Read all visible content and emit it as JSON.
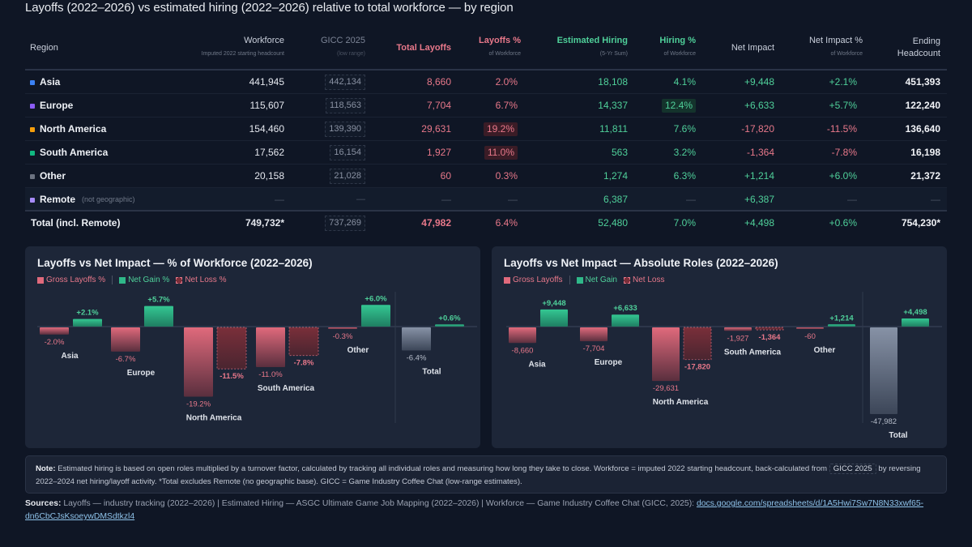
{
  "title": "Layoffs (2022–2026) vs estimated hiring (2022–2026) relative to total workforce — by region",
  "table": {
    "headers": {
      "region": "Region",
      "workforce": "Workforce",
      "workforce_sub": "Imputed 2022 starting headcount",
      "gicc": "GICC 2025",
      "gicc_sub": "(low range)",
      "layoffs": "Total Layoffs",
      "layoffs_pct": "Layoffs %",
      "layoffs_pct_sub": "of Workforce",
      "hiring": "Estimated Hiring",
      "hiring_sub": "(5-Yr Sum)",
      "hiring_pct": "Hiring %",
      "hiring_pct_sub": "of Workforce",
      "net": "Net Impact",
      "net_pct": "Net Impact %",
      "net_pct_sub": "of Workforce",
      "ending": "Ending Headcount"
    },
    "rows": [
      {
        "region": "Asia",
        "color": "#3b82f6",
        "workforce": "441,945",
        "gicc": "442,134",
        "layoffs": "8,660",
        "layoffs_pct": "2.0%",
        "hiring": "18,108",
        "hiring_pct": "4.1%",
        "net": "+9,448",
        "net_pct": "+2.1%",
        "ending": "451,393"
      },
      {
        "region": "Europe",
        "color": "#8b5cf6",
        "workforce": "115,607",
        "gicc": "118,563",
        "layoffs": "7,704",
        "layoffs_pct": "6.7%",
        "hiring": "14,337",
        "hiring_pct": "12.4%",
        "net": "+6,633",
        "net_pct": "+5.7%",
        "ending": "122,240"
      },
      {
        "region": "North America",
        "color": "#f59e0b",
        "workforce": "154,460",
        "gicc": "139,390",
        "layoffs": "29,631",
        "layoffs_pct": "19.2%",
        "hiring": "11,811",
        "hiring_pct": "7.6%",
        "net": "-17,820",
        "net_pct": "-11.5%",
        "ending": "136,640"
      },
      {
        "region": "South America",
        "color": "#10b981",
        "workforce": "17,562",
        "gicc": "16,154",
        "layoffs": "1,927",
        "layoffs_pct": "11.0%",
        "hiring": "563",
        "hiring_pct": "3.2%",
        "net": "-1,364",
        "net_pct": "-7.8%",
        "ending": "16,198"
      },
      {
        "region": "Other",
        "color": "#6b7280",
        "workforce": "20,158",
        "gicc": "21,028",
        "layoffs": "60",
        "layoffs_pct": "0.3%",
        "hiring": "1,274",
        "hiring_pct": "6.3%",
        "net": "+1,214",
        "net_pct": "+6.0%",
        "ending": "21,372"
      }
    ],
    "remote": {
      "region": "Remote",
      "note": "(not geographic)",
      "color": "#a78bfa",
      "workforce": "—",
      "gicc": "—",
      "layoffs": "—",
      "layoffs_pct": "—",
      "hiring": "6,387",
      "hiring_pct": "—",
      "net": "+6,387",
      "net_pct": "—",
      "ending": "—"
    },
    "total": {
      "region": "Total (incl. Remote)",
      "workforce": "749,732*",
      "gicc": "737,269",
      "layoffs": "47,982",
      "layoffs_pct": "6.4%",
      "hiring": "52,480",
      "hiring_pct": "7.0%",
      "net": "+4,498",
      "net_pct": "+0.6%",
      "ending": "754,230*"
    }
  },
  "colors": {
    "layoff": "#e06a7c",
    "gain": "#2fb889",
    "loss": "#7a2f3a",
    "total": "#8792a6",
    "text_red": "#e8788a",
    "text_green": "#4fd09a"
  },
  "chart_data": [
    {
      "type": "bar",
      "title": "Layoffs vs Net Impact — % of Workforce (2022–2026)",
      "legend": [
        "Gross Layoffs %",
        "Net Gain %",
        "Net Loss %"
      ],
      "legend_position": "top-left",
      "categories": [
        "Asia",
        "Europe",
        "North America",
        "South America",
        "Other",
        "Total"
      ],
      "series": [
        {
          "name": "Gross Layoffs %",
          "values": [
            -2.0,
            -6.7,
            -19.2,
            -11.0,
            -0.3,
            -6.4
          ]
        },
        {
          "name": "Net Impact %",
          "values": [
            2.1,
            5.7,
            -11.5,
            -7.8,
            6.0,
            0.6
          ]
        }
      ],
      "labels": {
        "layoffs": [
          "-2.0%",
          "-6.7%",
          "-19.2%",
          "-11.0%",
          "-0.3%",
          "-6.4%"
        ],
        "net": [
          "+2.1%",
          "+5.7%",
          "-11.5%",
          "-7.8%",
          "+6.0%",
          "+0.6%"
        ]
      },
      "unit": "%",
      "grid": false
    },
    {
      "type": "bar",
      "title": "Layoffs vs Net Impact — Absolute Roles (2022–2026)",
      "legend": [
        "Gross Layoffs",
        "Net Gain",
        "Net Loss"
      ],
      "legend_position": "top-left",
      "categories": [
        "Asia",
        "Europe",
        "North America",
        "South America",
        "Other",
        "Total"
      ],
      "series": [
        {
          "name": "Gross Layoffs",
          "values": [
            -8660,
            -7704,
            -29631,
            -1927,
            -60,
            -47982
          ]
        },
        {
          "name": "Net Impact",
          "values": [
            9448,
            6633,
            -17820,
            -1364,
            1214,
            4498
          ]
        }
      ],
      "labels": {
        "layoffs": [
          "-8,660",
          "-7,704",
          "-29,631",
          "-1,927",
          "-60",
          "-47,982"
        ],
        "net": [
          "+9,448",
          "+6,633",
          "-17,820",
          "-1,364",
          "+1,214",
          "+4,498"
        ]
      },
      "unit": "roles",
      "grid": false
    }
  ],
  "note": {
    "label": "Note:",
    "text1": "Estimated hiring is based on open roles multiplied by a turnover factor, calculated by tracking all individual roles and measuring how long they take to close. Workforce = imputed 2022 starting headcount, back-calculated from",
    "badge": "GICC 2025",
    "text2": "by reversing 2022–2024 net hiring/layoff activity. *Total excludes Remote (no geographic base). GICC = Game Industry Coffee Chat (low-range estimates)."
  },
  "sources": {
    "label": "Sources:",
    "text": "Layoffs — industry tracking (2022–2026) | Estimated Hiring — ASGC Ultimate Game Job Mapping (2022–2026) | Workforce — Game Industry Coffee Chat (GICC, 2025):",
    "link": "docs.google.com/spreadsheets/d/1A5Hwi7Sw7N8N33xwf65-dn6CbCJsKsoeywDMSdtkzl4"
  }
}
